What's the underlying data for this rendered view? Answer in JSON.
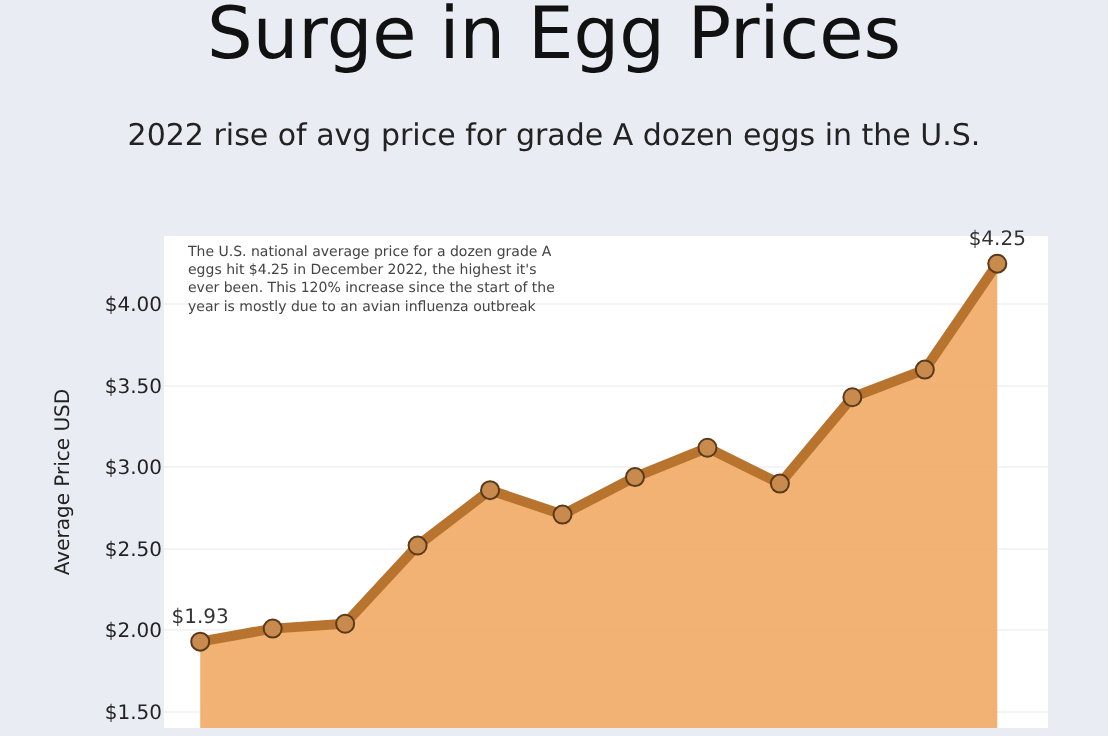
{
  "chart_data": {
    "type": "area",
    "title": "Surge in Egg Prices",
    "subtitle": "2022 rise of avg price for grade A dozen eggs in the U.S.",
    "ylabel": "Average Price USD",
    "annotations": [
      "The U.S. national average price for a dozen grade A\neggs hit $4.25 in December 2022, the highest it's\never been. This 120% increase since the start of the\nyear is mostly due to an avian influenza outbreak"
    ],
    "categories": [
      null,
      null,
      null,
      null,
      null,
      null,
      null,
      null,
      null,
      null,
      null,
      null
    ],
    "series": [
      {
        "color": "#b8732e",
        "values": [
          1.93,
          2.01,
          2.04,
          2.52,
          2.86,
          2.71,
          2.94,
          3.12,
          2.9,
          3.43,
          3.6,
          4.25
        ],
        "value_labels": [
          "$1.93",
          null,
          null,
          null,
          null,
          null,
          null,
          null,
          null,
          null,
          null,
          "$4.25"
        ]
      }
    ],
    "ylim": [
      1.4,
      4.42
    ],
    "yticks": [
      {
        "value": 1.5,
        "label": "$1.50"
      },
      {
        "value": 2.0,
        "label": "$2.00"
      },
      {
        "value": 2.5,
        "label": "$2.50"
      },
      {
        "value": 3.0,
        "label": "$3.00"
      },
      {
        "value": 3.5,
        "label": "$3.50"
      },
      {
        "value": 4.0,
        "label": "$4.00"
      }
    ],
    "grid": "y",
    "marker": "circle",
    "line_style": "solid",
    "tick_labels": "y"
  }
}
